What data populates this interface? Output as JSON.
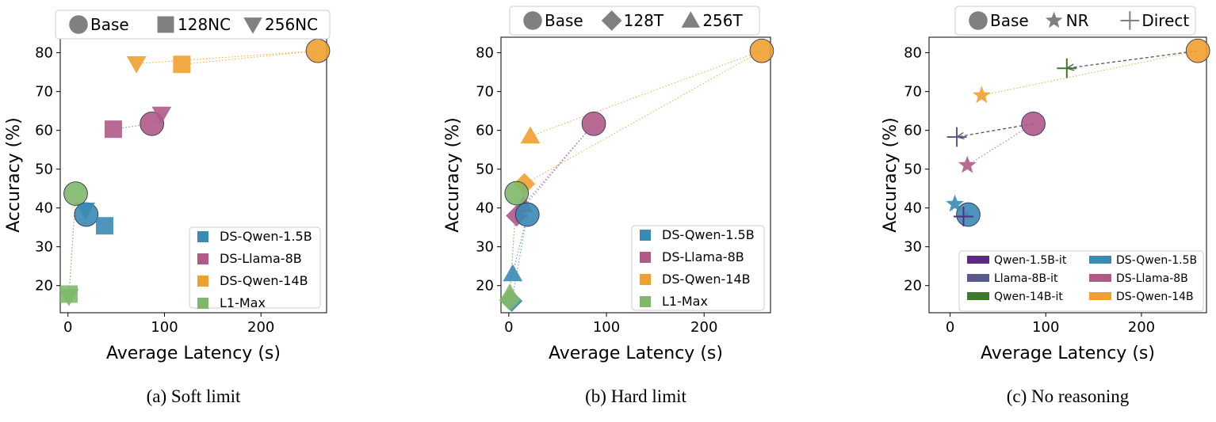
{
  "colors": {
    "DS-Qwen-1.5B": "#3a8ab3",
    "DS-Llama-8B": "#b05a8a",
    "DS-Qwen-14B": "#f0a030",
    "L1-Max": "#7fb86a",
    "Qwen-1.5B-it": "#5a2a82",
    "Llama-8B-it": "#5a5a90",
    "Qwen-14B-it": "#3a7a2a",
    "legend_gray": "#808080"
  },
  "chart_data": [
    {
      "type": "scatter",
      "caption": "(a) Soft limit",
      "xlabel": "Average Latency (s)",
      "ylabel": "Accuracy (%)",
      "xlim": [
        -8,
        268
      ],
      "ylim": [
        13,
        84
      ],
      "xticks": [
        0,
        100,
        200
      ],
      "yticks": [
        20,
        30,
        40,
        50,
        60,
        70,
        80
      ],
      "top_legend": [
        {
          "label": "Base",
          "marker": "circle"
        },
        {
          "label": "128NC",
          "marker": "square"
        },
        {
          "label": "256NC",
          "marker": "tri-down"
        }
      ],
      "series_legend": [
        {
          "label": "DS-Qwen-1.5B",
          "color_key": "DS-Qwen-1.5B"
        },
        {
          "label": "DS-Llama-8B",
          "color_key": "DS-Llama-8B"
        },
        {
          "label": "DS-Qwen-14B",
          "color_key": "DS-Qwen-14B"
        },
        {
          "label": "L1-Max",
          "color_key": "L1-Max"
        }
      ],
      "series_legend_pos": "bottom-right",
      "series": [
        {
          "name": "DS-Qwen-14B",
          "color_key": "DS-Qwen-14B",
          "points": [
            {
              "label": "Base",
              "marker": "circle",
              "x": 259,
              "y": 80.5
            },
            {
              "label": "128NC",
              "marker": "square",
              "x": 118,
              "y": 77
            },
            {
              "label": "256NC",
              "marker": "tri-down",
              "x": 71,
              "y": 77.2
            }
          ]
        },
        {
          "name": "DS-Llama-8B",
          "color_key": "DS-Llama-8B",
          "points": [
            {
              "label": "Base",
              "marker": "circle",
              "x": 87,
              "y": 61.7
            },
            {
              "label": "128NC",
              "marker": "square",
              "x": 47,
              "y": 60.3
            },
            {
              "label": "256NC",
              "marker": "tri-down",
              "x": 97,
              "y": 64.2
            }
          ]
        },
        {
          "name": "DS-Qwen-1.5B",
          "color_key": "DS-Qwen-1.5B",
          "points": [
            {
              "label": "Base",
              "marker": "circle",
              "x": 19,
              "y": 38.3
            },
            {
              "label": "128NC",
              "marker": "square",
              "x": 38,
              "y": 35.4
            },
            {
              "label": "256NC",
              "marker": "tri-down",
              "x": 18,
              "y": 39.5
            }
          ]
        },
        {
          "name": "L1-Max",
          "color_key": "L1-Max",
          "points": [
            {
              "label": "Base",
              "marker": "circle",
              "x": 8,
              "y": 43.7
            },
            {
              "label": "128NC",
              "marker": "square",
              "x": 1,
              "y": 17.8
            },
            {
              "label": "256NC",
              "marker": "tri-down",
              "x": 1,
              "y": 17.2
            }
          ]
        }
      ],
      "direct_links": []
    },
    {
      "type": "scatter",
      "caption": "(b) Hard limit",
      "xlabel": "Average Latency (s)",
      "ylabel": "Accuracy (%)",
      "xlim": [
        -8,
        268
      ],
      "ylim": [
        13,
        84
      ],
      "xticks": [
        0,
        100,
        200
      ],
      "yticks": [
        20,
        30,
        40,
        50,
        60,
        70,
        80
      ],
      "top_legend": [
        {
          "label": "Base",
          "marker": "circle"
        },
        {
          "label": "128T",
          "marker": "diamond"
        },
        {
          "label": "256T",
          "marker": "tri-up"
        }
      ],
      "series_legend": [
        {
          "label": "DS-Qwen-1.5B",
          "color_key": "DS-Qwen-1.5B"
        },
        {
          "label": "DS-Llama-8B",
          "color_key": "DS-Llama-8B"
        },
        {
          "label": "DS-Qwen-14B",
          "color_key": "DS-Qwen-14B"
        },
        {
          "label": "L1-Max",
          "color_key": "L1-Max"
        }
      ],
      "series_legend_pos": "bottom-right",
      "series": [
        {
          "name": "DS-Qwen-14B",
          "color_key": "DS-Qwen-14B",
          "points": [
            {
              "label": "Base",
              "marker": "circle",
              "x": 259,
              "y": 80.5
            },
            {
              "label": "128T",
              "marker": "diamond",
              "x": 16,
              "y": 46.2
            },
            {
              "label": "256T",
              "marker": "tri-up",
              "x": 22,
              "y": 58.5
            }
          ]
        },
        {
          "name": "DS-Llama-8B",
          "color_key": "DS-Llama-8B",
          "points": [
            {
              "label": "Base",
              "marker": "circle",
              "x": 87,
              "y": 61.7
            },
            {
              "label": "128T",
              "marker": "diamond",
              "x": 8,
              "y": 38
            },
            {
              "label": "256T",
              "marker": "tri-up",
              "x": 15,
              "y": 40.8
            }
          ]
        },
        {
          "name": "DS-Qwen-1.5B",
          "color_key": "DS-Qwen-1.5B",
          "points": [
            {
              "label": "Base",
              "marker": "circle",
              "x": 19,
              "y": 38.3
            },
            {
              "label": "128T",
              "marker": "diamond",
              "x": 3,
              "y": 16
            },
            {
              "label": "256T",
              "marker": "tri-up",
              "x": 4,
              "y": 23
            }
          ]
        },
        {
          "name": "L1-Max",
          "color_key": "L1-Max",
          "points": [
            {
              "label": "Base",
              "marker": "circle",
              "x": 8,
              "y": 43.8
            },
            {
              "label": "128T",
              "marker": "diamond",
              "x": 1,
              "y": 16.3
            },
            {
              "label": "256T",
              "marker": "tri-up",
              "x": 1,
              "y": 18
            }
          ]
        }
      ],
      "direct_links": []
    },
    {
      "type": "scatter",
      "caption": "(c) No reasoning",
      "xlabel": "Average Latency (s)",
      "ylabel": "Accuracy (%)",
      "xlim": [
        -22,
        268
      ],
      "ylim": [
        13,
        84
      ],
      "xticks": [
        0,
        100,
        200
      ],
      "yticks": [
        20,
        30,
        40,
        50,
        60,
        70,
        80
      ],
      "top_legend": [
        {
          "label": "Base",
          "marker": "circle"
        },
        {
          "label": "NR",
          "marker": "star"
        },
        {
          "label": "Direct",
          "marker": "plus"
        }
      ],
      "series_legend": [
        {
          "label": "Qwen-1.5B-it",
          "color_key": "Qwen-1.5B-it"
        },
        {
          "label": "Llama-8B-it",
          "color_key": "Llama-8B-it"
        },
        {
          "label": "Qwen-14B-it",
          "color_key": "Qwen-14B-it"
        },
        {
          "label": "DS-Qwen-1.5B",
          "color_key": "DS-Qwen-1.5B"
        },
        {
          "label": "DS-Llama-8B",
          "color_key": "DS-Llama-8B"
        },
        {
          "label": "DS-Qwen-14B",
          "color_key": "DS-Qwen-14B"
        }
      ],
      "series_legend_pos": "bottom-right",
      "series": [
        {
          "name": "DS-Qwen-14B",
          "color_key": "DS-Qwen-14B",
          "points": [
            {
              "label": "Base",
              "marker": "circle",
              "x": 259,
              "y": 80.5
            },
            {
              "label": "NR",
              "marker": "star",
              "x": 33,
              "y": 69
            }
          ]
        },
        {
          "name": "DS-Llama-8B",
          "color_key": "DS-Llama-8B",
          "points": [
            {
              "label": "Base",
              "marker": "circle",
              "x": 87,
              "y": 61.7
            },
            {
              "label": "NR",
              "marker": "star",
              "x": 18,
              "y": 51
            }
          ]
        },
        {
          "name": "DS-Qwen-1.5B",
          "color_key": "DS-Qwen-1.5B",
          "points": [
            {
              "label": "Base",
              "marker": "circle",
              "x": 19,
              "y": 38.3
            },
            {
              "label": "NR",
              "marker": "star",
              "x": 5,
              "y": 41
            }
          ]
        },
        {
          "name": "Qwen-14B-it",
          "color_key": "Qwen-14B-it",
          "points": [
            {
              "label": "Direct",
              "marker": "plus",
              "x": 122,
              "y": 76
            }
          ]
        },
        {
          "name": "Llama-8B-it",
          "color_key": "Llama-8B-it",
          "points": [
            {
              "label": "Direct",
              "marker": "plus",
              "x": 7,
              "y": 58.3
            }
          ]
        },
        {
          "name": "Qwen-1.5B-it",
          "color_key": "Qwen-1.5B-it",
          "points": [
            {
              "label": "Direct",
              "marker": "plus",
              "x": 14,
              "y": 37.8
            }
          ]
        }
      ],
      "direct_links": [
        {
          "from": [
            259,
            80.5
          ],
          "to": [
            122,
            76
          ]
        },
        {
          "from": [
            87,
            61.7
          ],
          "to": [
            7,
            58.3
          ]
        },
        {
          "from": [
            19,
            38.3
          ],
          "to": [
            14,
            37.8
          ]
        }
      ]
    }
  ]
}
